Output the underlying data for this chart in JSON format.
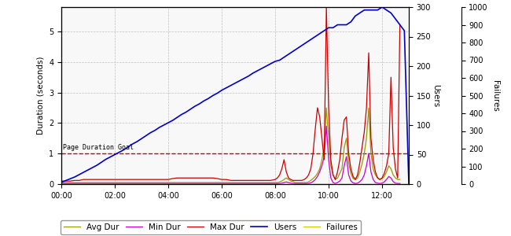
{
  "ylabel_left": "Duration (seconds)",
  "ylabel_right_users": "Users",
  "ylabel_right_failures": "Failures",
  "goal_label": "Page Duration Goal",
  "goal_value": 1.0,
  "ylim_left": [
    0,
    5.8
  ],
  "ylim_users": [
    0,
    300
  ],
  "ylim_failures": [
    0,
    1000
  ],
  "xlim": [
    0,
    780
  ],
  "xtick_labels": [
    "00:00",
    "02:00",
    "04:00",
    "06:00",
    "08:00",
    "10:00",
    "12:00"
  ],
  "xtick_positions": [
    0,
    120,
    240,
    360,
    480,
    600,
    720
  ],
  "colors": {
    "avg_dur": "#999900",
    "min_dur": "#cc00cc",
    "max_dur": "#cc0000",
    "users": "#0000cc",
    "failures": "#cccc00",
    "goal": "#cc0000",
    "grid": "#bbbbbb",
    "background": "#ffffff"
  },
  "legend": {
    "avg_dur": "Avg Dur",
    "min_dur": "Min Dur",
    "max_dur": "Max Dur",
    "users": "Users",
    "failures": "Failures"
  },
  "users_x": [
    0,
    10,
    20,
    30,
    40,
    50,
    60,
    70,
    80,
    90,
    100,
    110,
    120,
    130,
    140,
    150,
    160,
    170,
    180,
    190,
    200,
    210,
    220,
    230,
    240,
    250,
    260,
    270,
    280,
    290,
    300,
    310,
    320,
    330,
    340,
    350,
    360,
    370,
    380,
    390,
    400,
    410,
    420,
    430,
    440,
    450,
    460,
    470,
    480,
    490,
    500,
    510,
    520,
    530,
    540,
    550,
    560,
    570,
    580,
    590,
    600,
    610,
    620,
    630,
    640,
    650,
    660,
    670,
    680,
    690,
    700,
    710,
    720,
    730,
    740,
    750,
    760,
    770,
    780
  ],
  "users_y": [
    3,
    6,
    9,
    12,
    16,
    20,
    24,
    28,
    32,
    37,
    42,
    46,
    50,
    54,
    58,
    63,
    68,
    72,
    77,
    82,
    87,
    91,
    96,
    100,
    104,
    108,
    113,
    118,
    122,
    127,
    132,
    136,
    141,
    145,
    150,
    154,
    159,
    163,
    167,
    171,
    175,
    179,
    183,
    188,
    192,
    196,
    200,
    204,
    208,
    210,
    215,
    220,
    225,
    230,
    235,
    240,
    245,
    250,
    255,
    260,
    265,
    265,
    270,
    270,
    270,
    275,
    285,
    290,
    295,
    295,
    295,
    295,
    300,
    295,
    290,
    280,
    270,
    260,
    0
  ],
  "avg_dur_x": [
    0,
    10,
    20,
    30,
    40,
    50,
    60,
    70,
    80,
    90,
    100,
    110,
    120,
    130,
    140,
    150,
    160,
    170,
    180,
    190,
    200,
    210,
    220,
    230,
    240,
    250,
    260,
    270,
    280,
    290,
    300,
    310,
    320,
    330,
    340,
    350,
    360,
    370,
    380,
    390,
    395,
    400,
    410,
    420,
    430,
    440,
    450,
    460,
    470,
    480,
    485,
    490,
    495,
    500,
    505,
    510,
    515,
    520,
    525,
    530,
    535,
    540,
    545,
    550,
    555,
    560,
    565,
    570,
    575,
    580,
    585,
    590,
    595,
    600,
    605,
    610,
    615,
    620,
    625,
    630,
    635,
    640,
    645,
    650,
    655,
    660,
    665,
    670,
    675,
    680,
    685,
    690,
    695,
    700,
    705,
    710,
    715,
    720,
    725,
    730,
    735,
    740,
    745,
    750,
    755,
    760
  ],
  "avg_dur_y": [
    0.05,
    0.05,
    0.05,
    0.05,
    0.05,
    0.05,
    0.05,
    0.05,
    0.05,
    0.05,
    0.05,
    0.05,
    0.05,
    0.05,
    0.05,
    0.05,
    0.05,
    0.05,
    0.05,
    0.05,
    0.05,
    0.05,
    0.05,
    0.05,
    0.05,
    0.05,
    0.05,
    0.05,
    0.05,
    0.05,
    0.05,
    0.05,
    0.05,
    0.05,
    0.05,
    0.05,
    0.05,
    0.05,
    0.05,
    0.05,
    0.05,
    0.05,
    0.05,
    0.05,
    0.05,
    0.05,
    0.05,
    0.05,
    0.05,
    0.05,
    0.05,
    0.07,
    0.1,
    0.15,
    0.2,
    0.15,
    0.1,
    0.08,
    0.05,
    0.05,
    0.05,
    0.05,
    0.05,
    0.05,
    0.07,
    0.12,
    0.18,
    0.25,
    0.35,
    0.5,
    0.8,
    1.2,
    2.5,
    1.5,
    0.6,
    0.3,
    0.15,
    0.2,
    0.35,
    0.5,
    1.2,
    1.5,
    0.7,
    0.35,
    0.18,
    0.15,
    0.2,
    0.4,
    0.65,
    1.0,
    1.5,
    2.5,
    1.0,
    0.5,
    0.3,
    0.2,
    0.15,
    0.18,
    0.25,
    0.4,
    0.6,
    0.5,
    0.3,
    0.2,
    0.15,
    0.15
  ],
  "min_dur_x": [
    0,
    10,
    20,
    30,
    40,
    50,
    60,
    70,
    80,
    90,
    100,
    110,
    120,
    130,
    140,
    150,
    160,
    170,
    180,
    190,
    200,
    210,
    220,
    230,
    240,
    250,
    260,
    270,
    280,
    290,
    300,
    310,
    320,
    330,
    340,
    350,
    360,
    370,
    380,
    390,
    395,
    400,
    410,
    420,
    430,
    440,
    450,
    460,
    470,
    480,
    485,
    490,
    495,
    500,
    505,
    510,
    515,
    520,
    525,
    530,
    535,
    540,
    545,
    550,
    555,
    560,
    565,
    570,
    575,
    580,
    585,
    590,
    595,
    600,
    605,
    610,
    615,
    620,
    625,
    630,
    635,
    640,
    645,
    650,
    655,
    660,
    665,
    670,
    675,
    680,
    685,
    690,
    695,
    700,
    705,
    710,
    715,
    720,
    725,
    730,
    735,
    740,
    745,
    750,
    755,
    760
  ],
  "min_dur_y": [
    0.02,
    0.02,
    0.02,
    0.02,
    0.02,
    0.02,
    0.02,
    0.02,
    0.02,
    0.02,
    0.02,
    0.02,
    0.02,
    0.02,
    0.02,
    0.02,
    0.02,
    0.02,
    0.02,
    0.02,
    0.02,
    0.02,
    0.02,
    0.02,
    0.02,
    0.02,
    0.02,
    0.02,
    0.02,
    0.02,
    0.02,
    0.02,
    0.02,
    0.02,
    0.02,
    0.02,
    0.02,
    0.02,
    0.02,
    0.02,
    0.02,
    0.02,
    0.02,
    0.02,
    0.02,
    0.02,
    0.02,
    0.02,
    0.02,
    0.02,
    0.02,
    0.02,
    0.03,
    0.05,
    0.07,
    0.05,
    0.03,
    0.02,
    0.02,
    0.02,
    0.02,
    0.02,
    0.02,
    0.02,
    0.02,
    0.04,
    0.08,
    0.15,
    0.25,
    0.4,
    0.6,
    0.9,
    1.9,
    0.8,
    0.2,
    0.05,
    0.02,
    0.05,
    0.1,
    0.2,
    0.6,
    0.9,
    0.3,
    0.1,
    0.04,
    0.02,
    0.03,
    0.08,
    0.15,
    0.3,
    0.6,
    1.0,
    0.4,
    0.15,
    0.05,
    0.03,
    0.02,
    0.03,
    0.07,
    0.15,
    0.25,
    0.2,
    0.08,
    0.03,
    0.02,
    0.02
  ],
  "max_dur_x": [
    0,
    10,
    20,
    30,
    40,
    50,
    60,
    70,
    80,
    90,
    100,
    110,
    120,
    130,
    140,
    150,
    160,
    170,
    180,
    190,
    200,
    210,
    220,
    230,
    240,
    250,
    260,
    270,
    280,
    290,
    300,
    310,
    320,
    330,
    340,
    350,
    360,
    370,
    380,
    390,
    395,
    400,
    410,
    420,
    430,
    440,
    450,
    460,
    470,
    480,
    485,
    490,
    495,
    500,
    505,
    510,
    515,
    520,
    525,
    530,
    535,
    540,
    545,
    550,
    555,
    560,
    565,
    570,
    575,
    580,
    585,
    590,
    595,
    600,
    605,
    610,
    615,
    620,
    625,
    630,
    635,
    640,
    645,
    650,
    655,
    660,
    665,
    670,
    675,
    680,
    685,
    690,
    695,
    700,
    705,
    710,
    715,
    720,
    725,
    730,
    735,
    740,
    745,
    750,
    755,
    760
  ],
  "max_dur_y": [
    0.1,
    0.1,
    0.1,
    0.12,
    0.12,
    0.15,
    0.15,
    0.15,
    0.15,
    0.15,
    0.15,
    0.15,
    0.15,
    0.15,
    0.15,
    0.15,
    0.15,
    0.15,
    0.15,
    0.15,
    0.15,
    0.15,
    0.15,
    0.15,
    0.15,
    0.18,
    0.2,
    0.2,
    0.2,
    0.2,
    0.2,
    0.2,
    0.2,
    0.2,
    0.2,
    0.18,
    0.15,
    0.15,
    0.12,
    0.12,
    0.12,
    0.12,
    0.12,
    0.12,
    0.12,
    0.12,
    0.12,
    0.12,
    0.12,
    0.15,
    0.2,
    0.3,
    0.5,
    0.8,
    0.4,
    0.2,
    0.15,
    0.12,
    0.12,
    0.12,
    0.12,
    0.12,
    0.15,
    0.2,
    0.3,
    0.5,
    1.0,
    1.8,
    2.5,
    2.2,
    1.5,
    0.8,
    5.8,
    2.5,
    0.8,
    0.3,
    0.15,
    0.4,
    0.8,
    1.5,
    2.1,
    2.2,
    1.0,
    0.5,
    0.25,
    0.15,
    0.3,
    0.7,
    1.2,
    1.7,
    2.5,
    4.3,
    1.5,
    0.8,
    0.4,
    0.2,
    0.15,
    0.2,
    0.35,
    0.6,
    1.0,
    3.5,
    1.2,
    0.5,
    0.2,
    5.2
  ],
  "failures_x": [
    0,
    10,
    20,
    30,
    40,
    50,
    60,
    70,
    80,
    90,
    100,
    110,
    120,
    130,
    140,
    150,
    160,
    170,
    180,
    190,
    200,
    210,
    220,
    230,
    240,
    250,
    260,
    270,
    280,
    290,
    300,
    310,
    320,
    330,
    340,
    350,
    360,
    370,
    380,
    390,
    400,
    410,
    420,
    430,
    440,
    450,
    460,
    470,
    480,
    490,
    500,
    510,
    515,
    520,
    525,
    530,
    535,
    540,
    545,
    550,
    555,
    560,
    565,
    570,
    575,
    580,
    585,
    590,
    595,
    600,
    605,
    610,
    615,
    620,
    625,
    630,
    635,
    640,
    645,
    650,
    655,
    660,
    665,
    670,
    675,
    680,
    685,
    690,
    695,
    700,
    705,
    710,
    715,
    720,
    725,
    730,
    735,
    740,
    745,
    750,
    755,
    760
  ],
  "failures_y": [
    0,
    0,
    0,
    0,
    0,
    0,
    0,
    0,
    0,
    0,
    0,
    0,
    0,
    0,
    0,
    0,
    0,
    0,
    0,
    0,
    0,
    0,
    0,
    0,
    0,
    0,
    0,
    0,
    0,
    0,
    0,
    0,
    0,
    0,
    0,
    0,
    0,
    0,
    0,
    0,
    0,
    0,
    0,
    0,
    0,
    0,
    0,
    0,
    0,
    0,
    0,
    0,
    0,
    0,
    0,
    0,
    0,
    0,
    0,
    0,
    0,
    0,
    0,
    0,
    0,
    0,
    0,
    0,
    0,
    0,
    0,
    0,
    0,
    0,
    0,
    0,
    0,
    0,
    0,
    0,
    0,
    0,
    0,
    0,
    0,
    0,
    0,
    0,
    0,
    0,
    0,
    0,
    0,
    0,
    0,
    0,
    0,
    0,
    0,
    0,
    0,
    0
  ]
}
